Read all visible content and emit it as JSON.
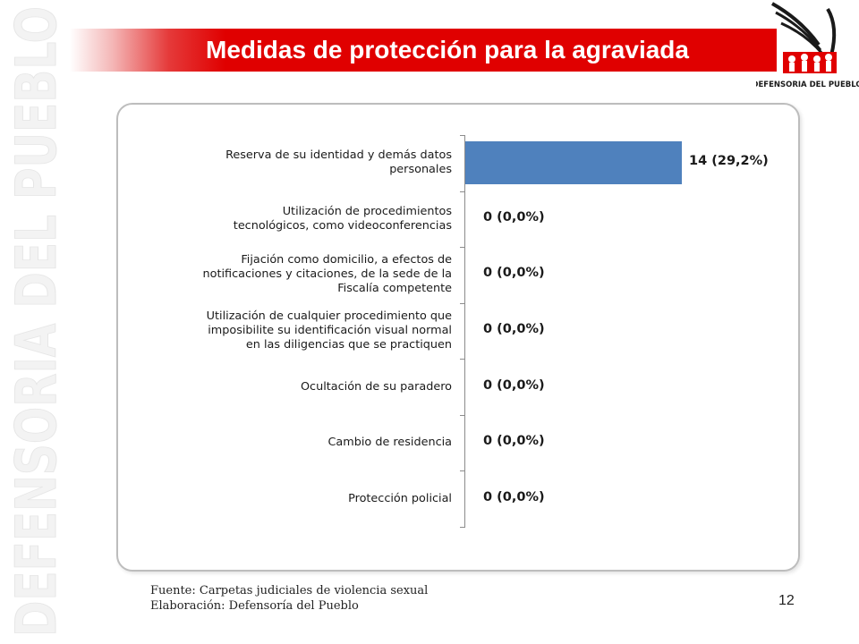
{
  "slide": {
    "title": "Medidas de protección para la agraviada",
    "watermark_text": "DEFENSORIA DEL PUEBLO",
    "logo_text": "DEFENSORIA DEL PUEBLO",
    "source_line1": "Fuente: Carpetas  judiciales de violencia sexual",
    "source_line2": "Elaboración: Defensoría del Pueblo",
    "page_number": "12",
    "accent_color": "#e00000",
    "bar_color": "#4f81bd"
  },
  "chart_data": {
    "type": "bar",
    "orientation": "horizontal",
    "categories": [
      "Reserva de su identidad y demás datos\npersonales",
      "Utilización de procedimientos\ntecnológicos, como videoconferencias",
      "Fijación como domicilio, a efectos de\nnotificaciones y citaciones, de la sede de la\nFiscalía competente",
      "Utilización de cualquier procedimiento que\nimposibilite su identificación visual normal\nen las diligencias que se practiquen",
      "Ocultación de su paradero",
      "Cambio de residencia",
      "Protección policial"
    ],
    "values": [
      14,
      0,
      0,
      0,
      0,
      0,
      0
    ],
    "percents": [
      29.2,
      0.0,
      0.0,
      0.0,
      0.0,
      0.0,
      0.0
    ],
    "data_labels": [
      "14 (29,2%)",
      "0 (0,0%)",
      "0 (0,0%)",
      "0 (0,0%)",
      "0 (0,0%)",
      "0 (0,0%)",
      "0 (0,0%)"
    ],
    "title": "",
    "xlabel": "",
    "ylabel": "",
    "grid": false
  }
}
